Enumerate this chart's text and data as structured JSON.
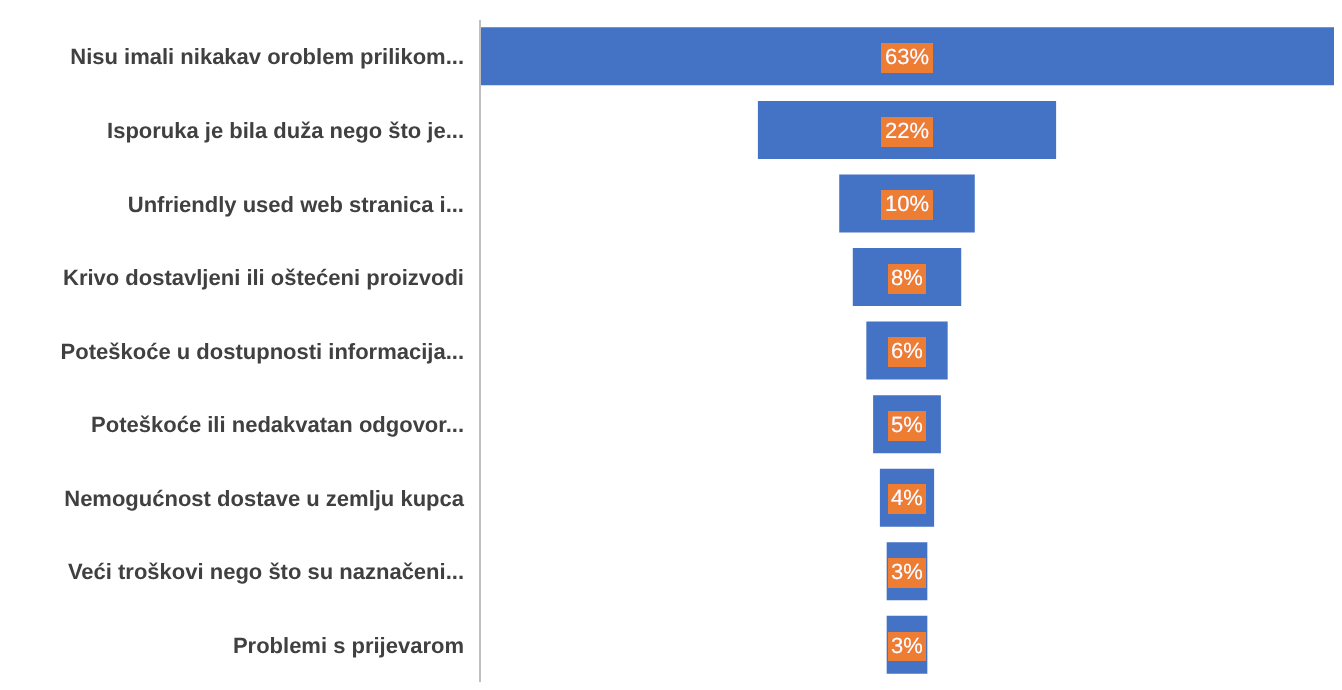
{
  "chart_data": {
    "type": "other",
    "categories": [
      "Nisu imali nikakav oroblem prilikom...",
      "Isporuka je bila duža nego što je...",
      "Unfriendly used web stranica i...",
      "Krivo dostavljeni ili oštećeni proizvodi",
      "Poteškoće u dostupnosti informacija...",
      "Poteškoće ili nedakvatan odgovor...",
      "Nemogućnost dostave u zemlju kupca",
      "Veći troškovi nego što su naznačeni...",
      "Problemi s prijevarom"
    ],
    "values": [
      63,
      22,
      10,
      8,
      6,
      5,
      4,
      3,
      3
    ],
    "value_labels": [
      "63%",
      "22%",
      "10%",
      "8%",
      "6%",
      "5%",
      "4%",
      "3%",
      "3%"
    ],
    "color": "#4472c4"
  }
}
